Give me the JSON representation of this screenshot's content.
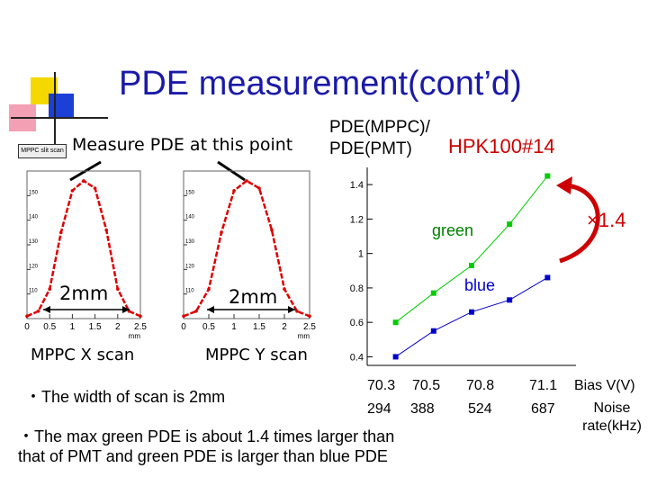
{
  "slide": {
    "title": "PDE measurement(cont’d)",
    "tab_label": "MPPC slit scan",
    "measure_label": "Measure PDE at this point",
    "x_scan_width": "2mm",
    "y_scan_width": "2mm",
    "x_scan_label": "MPPC X scan",
    "y_scan_label": "MPPC Y scan",
    "bullet1": "・The width of scan is 2mm",
    "bullet2_line1": "・The max green PDE is about 1.4 times larger than",
    "bullet2_line2": "that of PMT and green PDE is larger than blue PDE"
  },
  "ratio_chart": {
    "ylabel_line1": "PDE(MPPC)/",
    "ylabel_line2": "PDE(PMT)",
    "device": "HPK100#14",
    "ratio_label": "×1.4",
    "bias_label": "Bias V(V)",
    "noise_label_line1": "Noise",
    "noise_label_line2": "rate(kHz)",
    "bias_values": [
      "70.3",
      "70.5",
      "70.8",
      "71.1"
    ],
    "noise_values": [
      "294",
      "388",
      "524",
      "687"
    ],
    "colors": {
      "green": "#00cc00",
      "blue": "#0000cc",
      "arrow": "#cc0000"
    }
  },
  "chart_data": [
    {
      "type": "line",
      "title": "",
      "xlabel": "Bias V(V)",
      "ylabel": "PDE(MPPC)/ PDE(PMT)",
      "ylim": [
        0.35,
        1.5
      ],
      "yticks": [
        "0.4",
        "0.6",
        "0.8",
        "1",
        "1.2",
        "1.4"
      ],
      "x": [
        70.25,
        70.45,
        70.65,
        70.85,
        71.05
      ],
      "series": [
        {
          "name": "green",
          "values": [
            0.6,
            0.77,
            0.93,
            1.17,
            1.45
          ]
        },
        {
          "name": "blue",
          "values": [
            0.4,
            0.55,
            0.66,
            0.73,
            0.86
          ]
        }
      ]
    },
    {
      "type": "line",
      "title": "",
      "xlabel": "mm",
      "xticks": [
        "0",
        "0.5",
        "1",
        "1.5",
        "2",
        "2.5"
      ],
      "yticks": [
        "110",
        "120",
        "130",
        "140",
        "150"
      ],
      "ylim": [
        100,
        160
      ],
      "x": [
        0,
        0.25,
        0.5,
        0.75,
        1.0,
        1.25,
        1.5,
        1.75,
        2.0,
        2.25,
        2.5
      ],
      "values": [
        101,
        103,
        112,
        135,
        152,
        156,
        153,
        136,
        112,
        103,
        101
      ]
    },
    {
      "type": "line",
      "title": "",
      "xlabel": "mm",
      "xticks": [
        "0",
        "0.5",
        "1",
        "1.5",
        "2",
        "2.5"
      ],
      "yticks": [
        "110",
        "120",
        "130",
        "140",
        "150"
      ],
      "ylim": [
        100,
        160
      ],
      "x": [
        0,
        0.25,
        0.5,
        0.75,
        1.0,
        1.25,
        1.5,
        1.75,
        2.0,
        2.25,
        2.5
      ],
      "values": [
        101,
        103,
        112,
        135,
        152,
        156,
        153,
        136,
        112,
        103,
        101
      ]
    }
  ]
}
